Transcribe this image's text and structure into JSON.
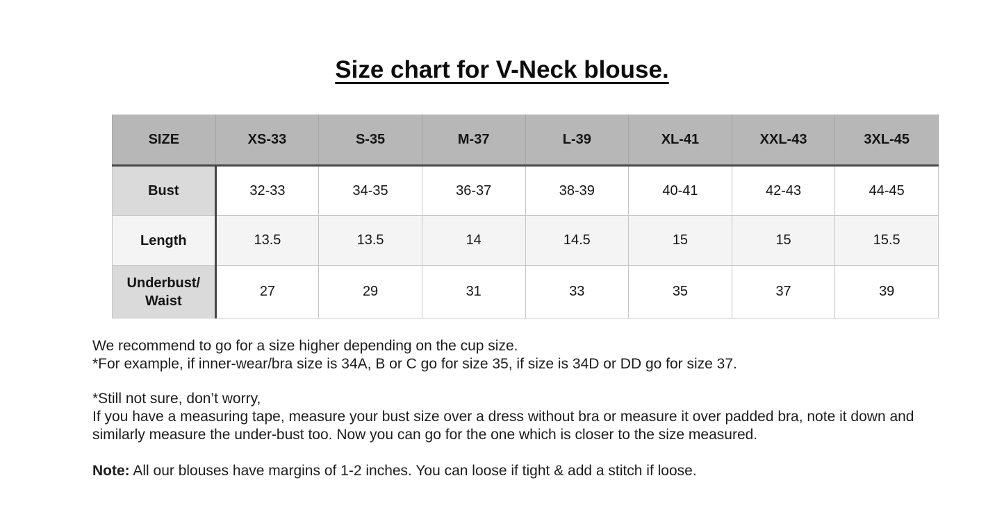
{
  "title": "Size chart for V-Neck blouse.",
  "table": {
    "columns": [
      "SIZE",
      "XS-33",
      "S-35",
      "M-37",
      "L-39",
      "XL-41",
      "XXL-43",
      "3XL-45"
    ],
    "rows": [
      {
        "label": "Bust",
        "values": [
          "32-33",
          "34-35",
          "36-37",
          "38-39",
          "40-41",
          "42-43",
          "44-45"
        ]
      },
      {
        "label": "Length",
        "values": [
          "13.5",
          "13.5",
          "14",
          "14.5",
          "15",
          "15",
          "15.5"
        ]
      },
      {
        "label": "Underbust/\nWaist",
        "values": [
          "27",
          "29",
          "31",
          "33",
          "35",
          "37",
          "39"
        ]
      }
    ]
  },
  "notes": {
    "recommend_line": "We recommend to go for a size higher depending on the cup size.",
    "example_line": "*For example, if inner-wear/bra size is 34A, B or C go for size 35, if size is 34D or DD go for size 37.",
    "still_not_sure_line": "*Still not sure, don’t worry,",
    "measuring_line": "If you have a measuring tape, measure your bust size over a dress without bra or measure it over padded bra, note it down and similarly measure the under-bust too. Now you can go for the one which is closer to the size measured.",
    "note_label": "Note:",
    "note_text": " All our blouses have margins of 1-2 inches. You can loose if tight & add a stitch if loose."
  },
  "colors": {
    "header_bg": "#b7b7b7",
    "row_label_bg": "#dadada",
    "alt_row_bg": "#f4f4f4",
    "grid_line": "#c6c6c6",
    "heavy_line": "#474747",
    "text": "#1b1b1b"
  }
}
